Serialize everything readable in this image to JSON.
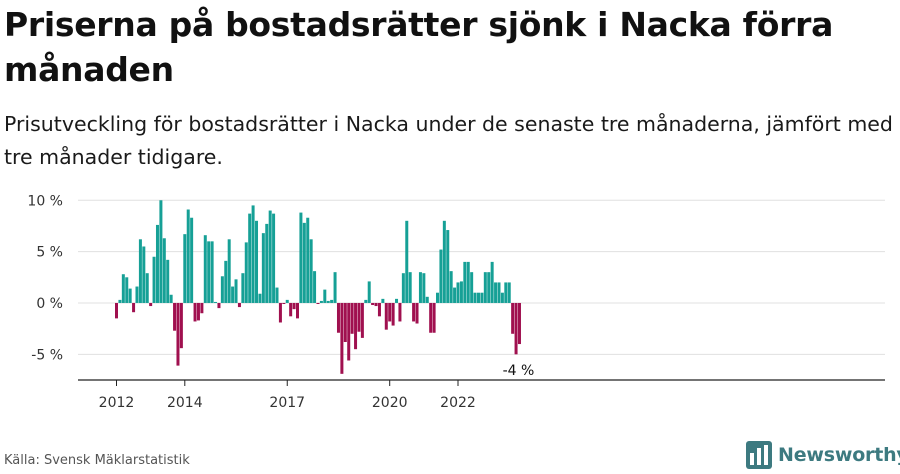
{
  "title": "Priserna på bostadsrätter sjönk i Nacka förra månaden",
  "subtitle": "Prisutveckling för bostadsrätter i Nacka under de senaste tre månaderna, jämfört med tre månader tidigare.",
  "source": "Källa: Svensk Mäklarstatistik",
  "brand": "Newsworthy",
  "colors": {
    "positive": "#16a096",
    "negative": "#a0104f",
    "grid": "#e0e0e0"
  },
  "chart_data": {
    "type": "bar",
    "title": "Priserna på bostadsrätter sjönk i Nacka förra månaden",
    "xlabel": "",
    "ylabel": "",
    "ylim": [
      -7.5,
      11
    ],
    "yticks": [
      10,
      5,
      0,
      -5
    ],
    "ytick_labels": [
      "10 %",
      "5 %",
      "0 %",
      "-5 %"
    ],
    "xtick_labels": [
      {
        "label": "2012",
        "month_index": 0
      },
      {
        "label": "2014",
        "month_index": 20
      },
      {
        "label": "2017",
        "month_index": 50
      },
      {
        "label": "2020",
        "month_index": 80
      },
      {
        "label": "2022",
        "month_index": 100
      }
    ],
    "start": "2012-01",
    "values": [
      -1.5,
      0.3,
      2.8,
      2.5,
      1.4,
      -0.9,
      1.6,
      6.2,
      5.5,
      2.9,
      -0.3,
      4.5,
      7.6,
      10,
      6.3,
      4.2,
      0.8,
      -2.7,
      -6.1,
      -4.4,
      6.7,
      9.1,
      8.3,
      -1.8,
      -1.7,
      -1,
      6.6,
      6,
      6,
      0.1,
      -0.5,
      2.6,
      4.1,
      6.2,
      1.6,
      2.3,
      -0.4,
      2.9,
      5.9,
      8.7,
      9.5,
      8,
      0.9,
      6.8,
      7.7,
      9,
      8.7,
      1.5,
      -1.9,
      -0.1,
      0.3,
      -1.3,
      -0.6,
      -1.5,
      8.8,
      7.8,
      8.3,
      6.2,
      3.1,
      -0.1,
      0.2,
      1.3,
      0.2,
      0.3,
      3,
      -2.9,
      -6.9,
      -3.8,
      -5.6,
      -3,
      -4.5,
      -2.8,
      -3.4,
      0.3,
      2.1,
      -0.2,
      -0.3,
      -1.3,
      0.4,
      -2.6,
      -1.8,
      -2.2,
      0.4,
      -1.8,
      2.9,
      8,
      3,
      -1.8,
      -2,
      3,
      2.9,
      0.6,
      -2.9,
      -2.9,
      1,
      5.2,
      8,
      7.1,
      3.1,
      1.5,
      2,
      2.1,
      4,
      4,
      3,
      1,
      1,
      1,
      3,
      3,
      4,
      2,
      2,
      1,
      2,
      2,
      -3,
      -5,
      -4
    ],
    "last_value_label": "-4 %"
  }
}
